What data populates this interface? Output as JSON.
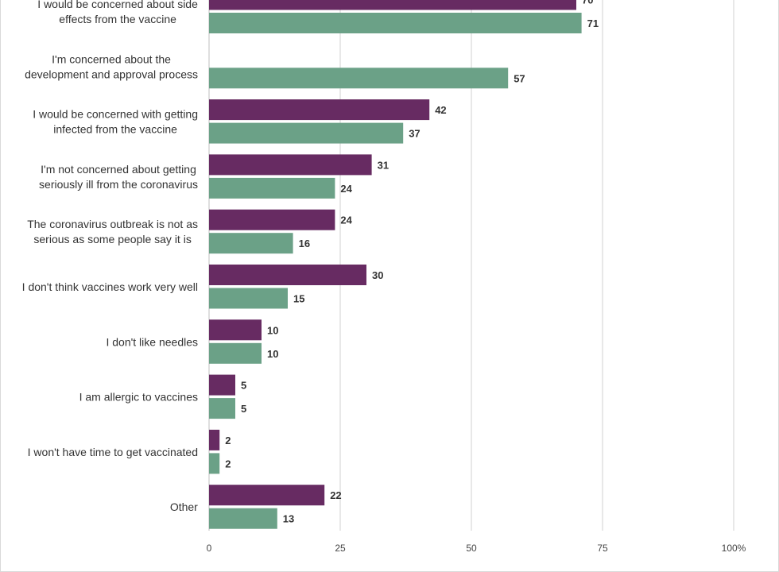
{
  "chart_data": {
    "type": "bar",
    "orientation": "horizontal",
    "categories": [
      "I would be concerned about side effects from the vaccine",
      "I'm concerned about the development and approval process",
      "I would be concerned with getting infected from the vaccine",
      "I'm not concerned about getting seriously ill from the coronavirus",
      "The coronavirus outbreak is not as serious as some people say it is",
      "I don't think vaccines work very well",
      "I don't like needles",
      "I am allergic to vaccines",
      "I won't have time to get vaccinated",
      "Other"
    ],
    "category_label_lines": [
      [
        "I would be concerned about side",
        "effects from the vaccine"
      ],
      [
        "I'm concerned about the",
        "development and approval process"
      ],
      [
        "I would be concerned with getting",
        "infected from the vaccine"
      ],
      [
        "I'm not concerned about getting",
        "seriously ill from the coronavirus"
      ],
      [
        "The coronavirus outbreak is not as",
        "serious as some people say it is"
      ],
      [
        "I don't think vaccines work very well"
      ],
      [
        "I don't like needles"
      ],
      [
        "I am allergic to vaccines"
      ],
      [
        "I won't have time to get vaccinated"
      ],
      [
        "Other"
      ]
    ],
    "series": [
      {
        "color": "#672b62",
        "values": [
          70,
          null,
          42,
          31,
          24,
          30,
          10,
          5,
          2,
          22
        ]
      },
      {
        "color": "#6ba187",
        "values": [
          71,
          57,
          37,
          24,
          16,
          15,
          10,
          5,
          2,
          13
        ]
      }
    ],
    "xlim": [
      0,
      100
    ],
    "x_ticks": [
      "0",
      "25",
      "50",
      "75",
      "100%"
    ],
    "x_tick_values": [
      0,
      25,
      50,
      75,
      100
    ],
    "grid": true,
    "colors": {
      "grid": "#d0d0d0",
      "text": "#333333"
    }
  }
}
